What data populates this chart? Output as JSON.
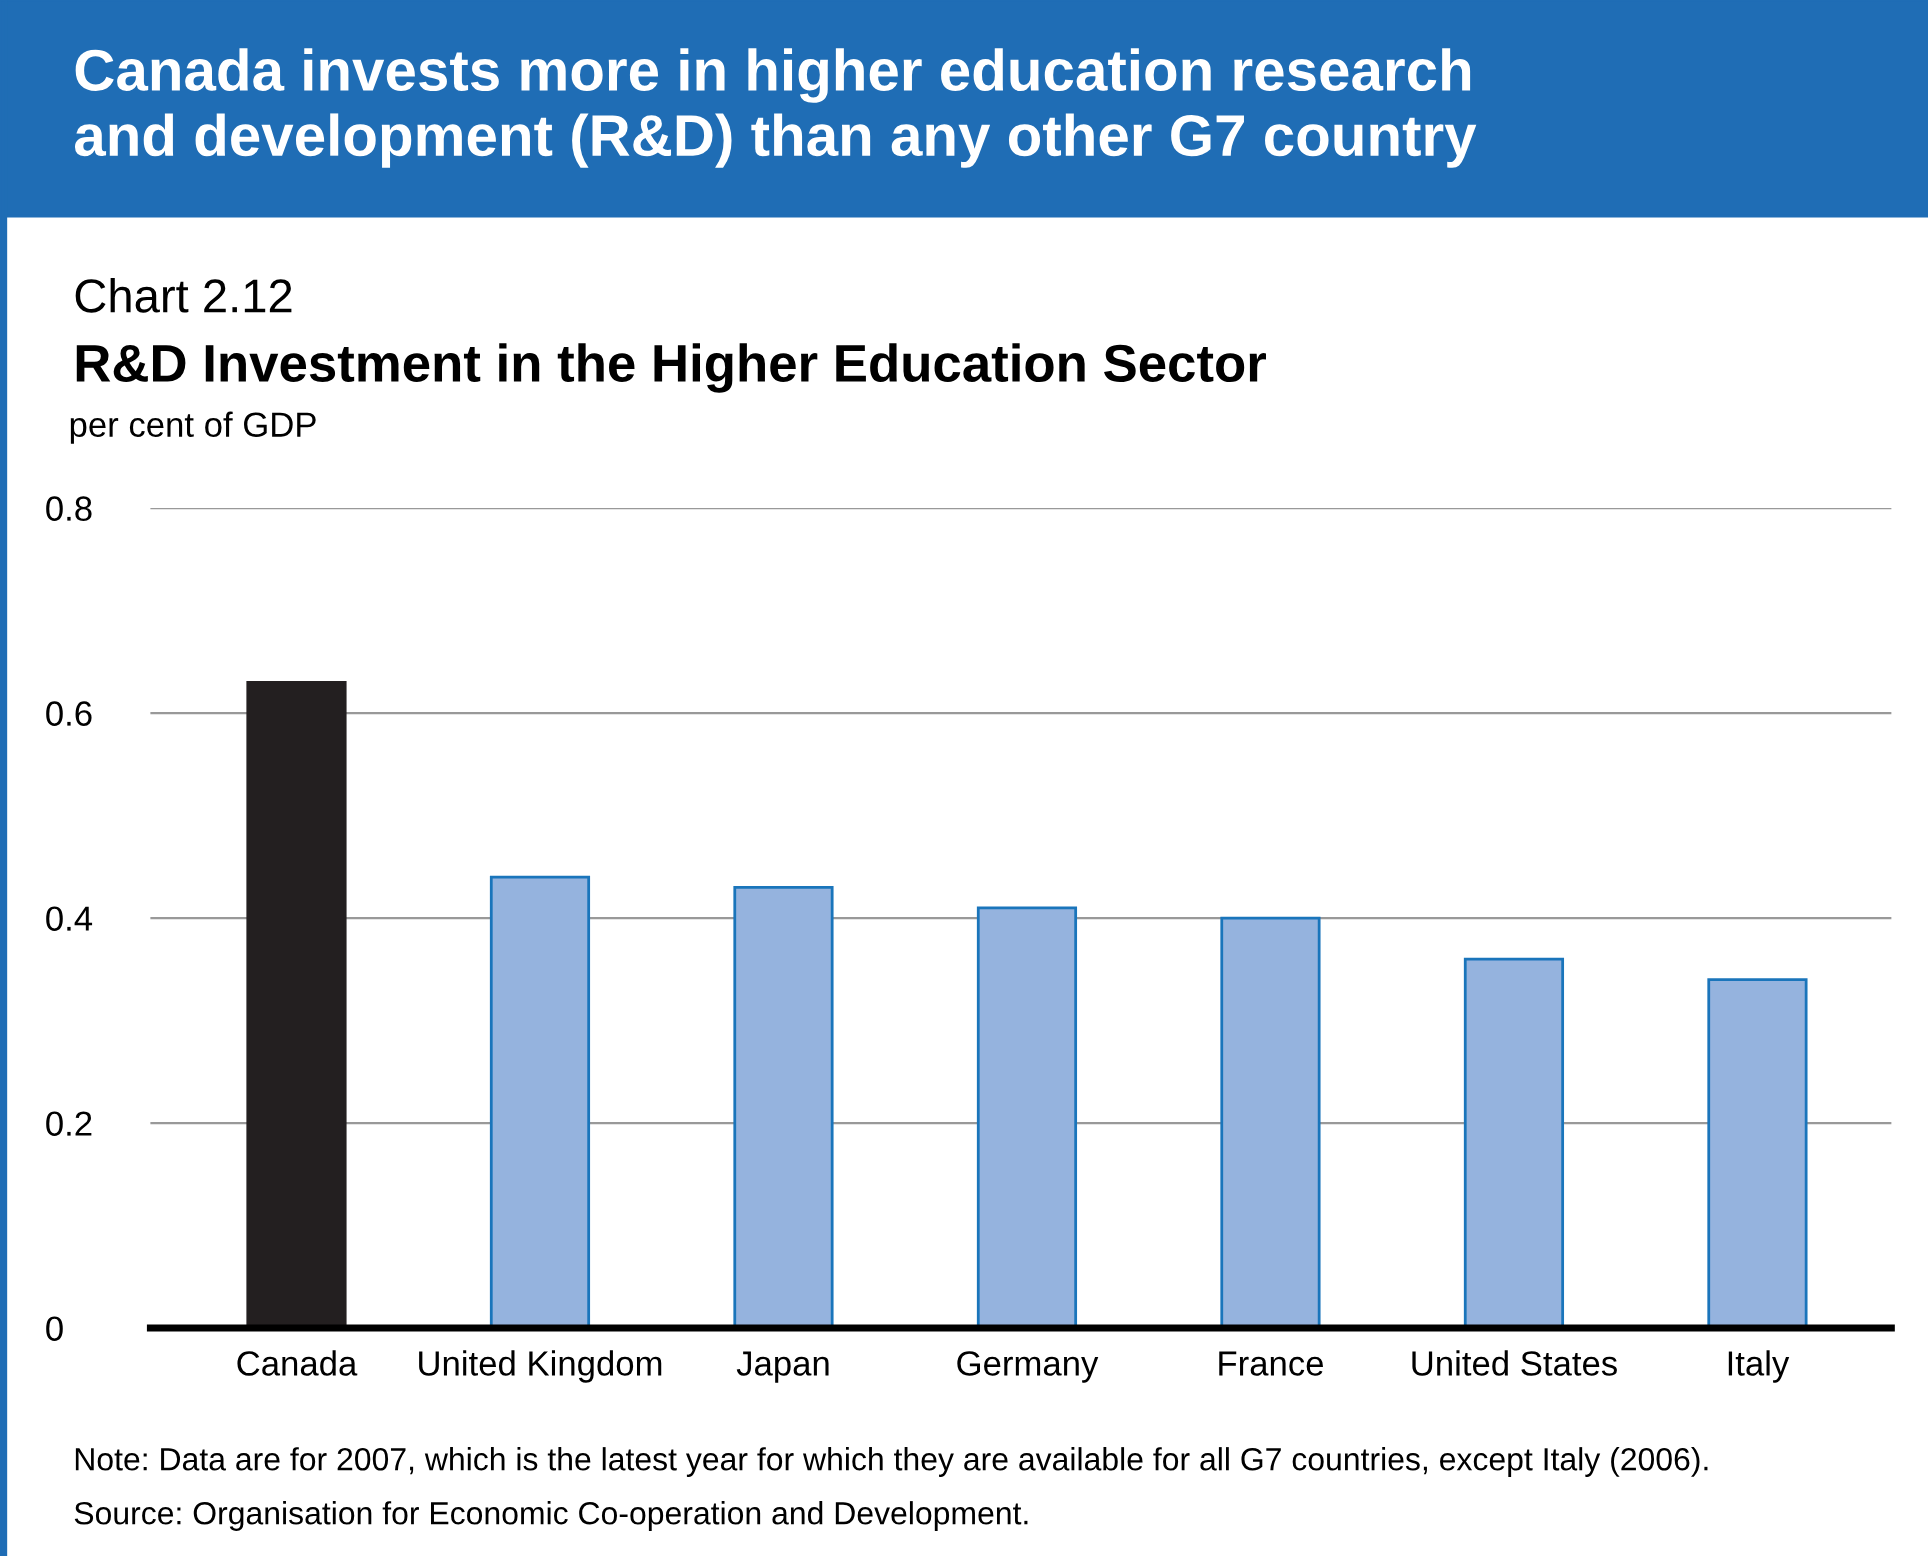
{
  "chart_data": {
    "type": "bar",
    "title": "Canada invests more in higher education research\nand development (R&D) than any other G7 country",
    "subtitle": "R&D Investment in the Higher Education Sector",
    "ylabel": "per cent of GDP",
    "categories": [
      "Canada",
      "United Kingdom",
      "Japan",
      "Germany",
      "France",
      "United States",
      "Italy"
    ],
    "values": [
      0.63,
      0.44,
      0.43,
      0.41,
      0.4,
      0.36,
      0.34
    ],
    "colors": [
      "#231f20",
      "#95b3de",
      "#95b3de",
      "#95b3de",
      "#95b3de",
      "#95b3de",
      "#95b3de"
    ],
    "ylim": [
      0,
      0.8
    ],
    "yticks": [
      {
        "value": 0,
        "label": "0"
      },
      0.2,
      0.4,
      0.6,
      0.8
    ],
    "grid": "y",
    "annotations": [
      "Chart 2.12",
      "Note: Data are for 2007, which is the latest year for which they are available for all G7 countries, except Italy (2006).",
      "Source: Organisation for Economic Co-operation and Development."
    ]
  }
}
